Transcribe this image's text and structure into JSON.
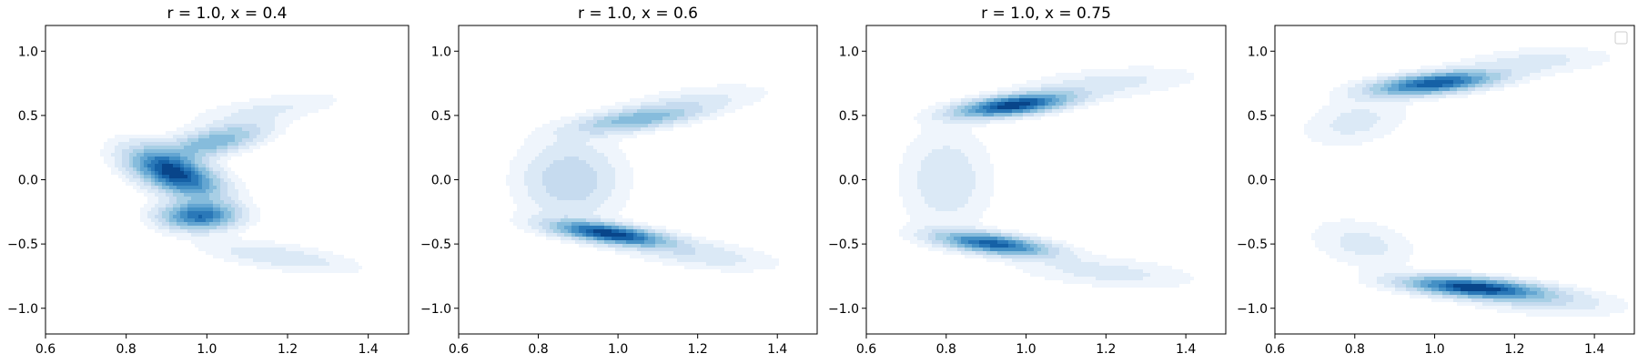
{
  "chart_data": [
    {
      "type": "contour",
      "title": "r = 1.0, x = 0.4",
      "xlim": [
        0.6,
        1.5
      ],
      "ylim": [
        -1.2,
        1.2
      ],
      "xticks": [
        0.6,
        0.8,
        1.0,
        1.2,
        1.4
      ],
      "xtick_labels": [
        "0.6",
        "0.8",
        "1.0",
        "1.2",
        "1.4"
      ],
      "yticks": [
        -1.0,
        -0.5,
        0.0,
        0.5,
        1.0
      ],
      "ytick_labels": [
        "−1.0",
        "−0.5",
        "0.0",
        "0.5",
        "1.0"
      ],
      "colormap": "Blues",
      "legend": false,
      "modes": [
        {
          "x": 0.92,
          "y": 0.05,
          "sx": 0.07,
          "sy": 0.12,
          "rho": -0.55,
          "w": 1.0
        },
        {
          "x": 0.98,
          "y": -0.28,
          "sx": 0.06,
          "sy": 0.07,
          "rho": 0.0,
          "w": 0.8
        },
        {
          "x": 1.02,
          "y": 0.3,
          "sx": 0.08,
          "sy": 0.09,
          "rho": 0.6,
          "w": 0.45
        },
        {
          "x": 1.15,
          "y": 0.55,
          "sx": 0.12,
          "sy": 0.08,
          "rho": 0.6,
          "w": 0.1
        },
        {
          "x": 1.18,
          "y": -0.6,
          "sx": 0.12,
          "sy": 0.08,
          "rho": -0.6,
          "w": 0.15
        }
      ]
    },
    {
      "type": "contour",
      "title": "r = 1.0, x = 0.6",
      "xlim": [
        0.6,
        1.5
      ],
      "ylim": [
        -1.2,
        1.2
      ],
      "xticks": [
        0.6,
        0.8,
        1.0,
        1.2,
        1.4
      ],
      "xtick_labels": [
        "0.6",
        "0.8",
        "1.0",
        "1.2",
        "1.4"
      ],
      "yticks": [
        -1.0,
        -0.5,
        0.0,
        0.5,
        1.0
      ],
      "ytick_labels": [
        "−1.0",
        "−0.5",
        "0.0",
        "0.5",
        "1.0"
      ],
      "colormap": "Blues",
      "legend": false,
      "modes": [
        {
          "x": 0.98,
          "y": -0.42,
          "sx": 0.09,
          "sy": 0.06,
          "rho": -0.6,
          "w": 1.0
        },
        {
          "x": 1.05,
          "y": 0.47,
          "sx": 0.1,
          "sy": 0.07,
          "rho": 0.6,
          "w": 0.45
        },
        {
          "x": 0.88,
          "y": 0.0,
          "sx": 0.08,
          "sy": 0.2,
          "rho": 0.0,
          "w": 0.25
        },
        {
          "x": 1.2,
          "y": -0.58,
          "sx": 0.12,
          "sy": 0.08,
          "rho": -0.5,
          "w": 0.15
        },
        {
          "x": 1.2,
          "y": 0.62,
          "sx": 0.12,
          "sy": 0.08,
          "rho": 0.5,
          "w": 0.1
        }
      ]
    },
    {
      "type": "contour",
      "title": "r = 1.0, x = 0.75",
      "xlim": [
        0.6,
        1.5
      ],
      "ylim": [
        -1.2,
        1.2
      ],
      "xticks": [
        0.6,
        0.8,
        1.0,
        1.2,
        1.4
      ],
      "xtick_labels": [
        "0.6",
        "0.8",
        "1.0",
        "1.2",
        "1.4"
      ],
      "yticks": [
        -1.0,
        -0.5,
        0.0,
        0.5,
        1.0
      ],
      "ytick_labels": [
        "−1.0",
        "−0.5",
        "0.0",
        "0.5",
        "1.0"
      ],
      "colormap": "Blues",
      "legend": false,
      "modes": [
        {
          "x": 0.97,
          "y": 0.58,
          "sx": 0.09,
          "sy": 0.06,
          "rho": 0.55,
          "w": 1.0
        },
        {
          "x": 0.92,
          "y": -0.5,
          "sx": 0.09,
          "sy": 0.06,
          "rho": -0.55,
          "w": 0.85
        },
        {
          "x": 0.8,
          "y": 0.0,
          "sx": 0.07,
          "sy": 0.25,
          "rho": 0.0,
          "w": 0.15
        },
        {
          "x": 1.2,
          "y": 0.75,
          "sx": 0.14,
          "sy": 0.08,
          "rho": 0.4,
          "w": 0.12
        },
        {
          "x": 1.2,
          "y": -0.72,
          "sx": 0.14,
          "sy": 0.08,
          "rho": -0.4,
          "w": 0.12
        }
      ]
    },
    {
      "type": "contour",
      "title": "",
      "xlim": [
        0.6,
        1.5
      ],
      "ylim": [
        -1.2,
        1.2
      ],
      "xticks": [
        0.6,
        0.8,
        1.0,
        1.2,
        1.4
      ],
      "xtick_labels": [
        "0.6",
        "0.8",
        "1.0",
        "1.2",
        "1.4"
      ],
      "yticks": [
        -1.0,
        -0.5,
        0.0,
        0.5,
        1.0
      ],
      "ytick_labels": [
        "−1.0",
        "−0.5",
        "0.0",
        "0.5",
        "1.0"
      ],
      "colormap": "Blues",
      "legend": true,
      "legend_position": "top-right",
      "modes": [
        {
          "x": 1.0,
          "y": 0.75,
          "sx": 0.1,
          "sy": 0.06,
          "rho": 0.5,
          "w": 0.9
        },
        {
          "x": 1.1,
          "y": -0.84,
          "sx": 0.11,
          "sy": 0.055,
          "rho": -0.45,
          "w": 1.0
        },
        {
          "x": 0.8,
          "y": 0.45,
          "sx": 0.08,
          "sy": 0.12,
          "rho": 0.3,
          "w": 0.12
        },
        {
          "x": 0.82,
          "y": -0.5,
          "sx": 0.08,
          "sy": 0.12,
          "rho": -0.3,
          "w": 0.12
        },
        {
          "x": 1.28,
          "y": -0.95,
          "sx": 0.12,
          "sy": 0.07,
          "rho": -0.3,
          "w": 0.15
        },
        {
          "x": 1.25,
          "y": 0.92,
          "sx": 0.12,
          "sy": 0.07,
          "rho": 0.3,
          "w": 0.12
        }
      ]
    }
  ]
}
